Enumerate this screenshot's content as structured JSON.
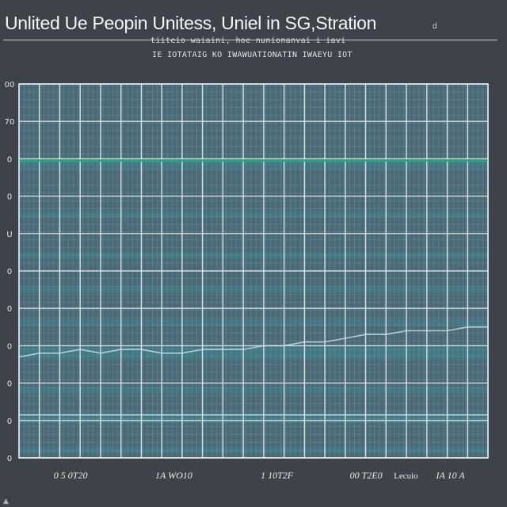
{
  "chart_data": {
    "type": "line",
    "title": "Unlited Ue Peopin Unitess, Uniel  in SG,Stration",
    "title_mark": "d",
    "subtitle_lines": [
      "tiiteio waiaini, hoe nunionanvai i iavi",
      "IE IOTATAIG KO IWAWUATIONATIN IWAEYU IOT"
    ],
    "xlabel": "Lecuio",
    "ylabel": "",
    "y_tick_labels": [
      "0",
      "0",
      "0",
      "0",
      "0",
      "0",
      "U",
      "0",
      "0",
      "70",
      "00"
    ],
    "x_tick_labels": [
      "0 5 0T20",
      "1A WO10",
      "1 10T2F",
      "00 T2E0",
      "IA 10 A"
    ],
    "ylim": [
      0,
      100
    ],
    "grid": true,
    "legend": "none",
    "band_levels": [
      80,
      79,
      66,
      55,
      46,
      37,
      30,
      29,
      28,
      19,
      12,
      11,
      3
    ],
    "series": [
      {
        "values": [
          79.5,
          79.5,
          79.5,
          79.5,
          79.5,
          79.5,
          79.5,
          79.5,
          79.5,
          79.5,
          79.5,
          79.5,
          79.5,
          79.5,
          79.5,
          79.5,
          79.5,
          79.5,
          79.5,
          79.5,
          79.5,
          79.5,
          79.5,
          79.5
        ]
      },
      {
        "values": [
          27,
          28,
          28,
          29,
          28,
          29,
          29,
          28,
          28,
          29,
          29,
          29,
          30,
          30,
          31,
          31,
          32,
          33,
          33,
          34,
          34,
          34,
          35,
          35
        ]
      },
      {
        "values": [
          11.5,
          11.5,
          11.5,
          11.5,
          11.5,
          11.5,
          11.5,
          11.5,
          11.5,
          11.5,
          11.5,
          11.5,
          11.5,
          11.5,
          11.5,
          11.5,
          11.5,
          11.5,
          11.5,
          11.5,
          11.5,
          11.5,
          11.5,
          11.5
        ]
      }
    ],
    "colors": {
      "background": "#3d4349",
      "plot_fill": "#4b6a77",
      "band_fill": "#3f7f8a",
      "grid_major": "#e8eef1",
      "grid_minor": "#8fb0ba",
      "accent_line": "#2fa37a",
      "series_line": "#cfe3ea"
    }
  }
}
